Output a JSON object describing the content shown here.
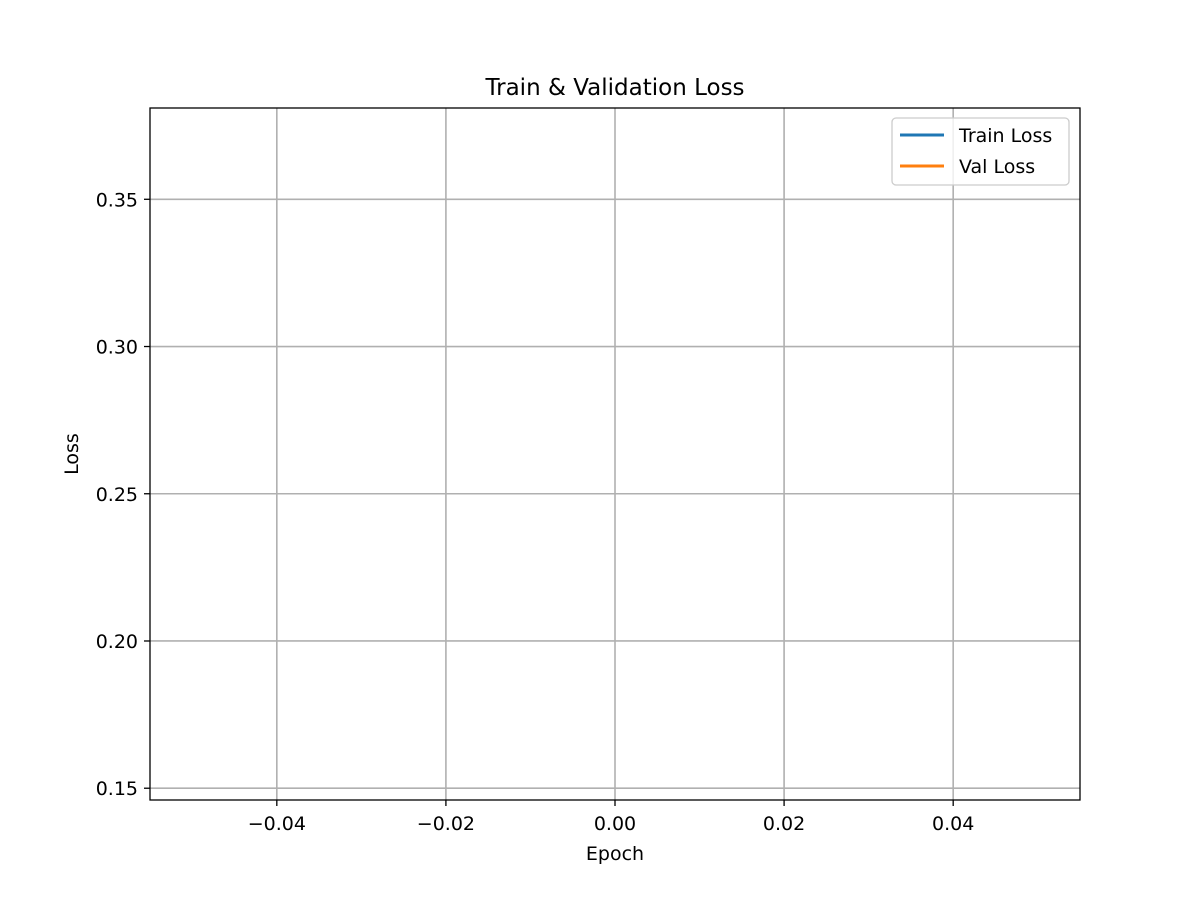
{
  "chart_data": {
    "type": "line",
    "title": "Train & Validation Loss",
    "xlabel": "Epoch",
    "ylabel": "Loss",
    "xlim": [
      -0.055,
      0.055
    ],
    "ylim": [
      0.146,
      0.381
    ],
    "xticks": [
      -0.04,
      -0.02,
      0.0,
      0.02,
      0.04
    ],
    "xtick_labels": [
      "−0.04",
      "−0.02",
      "0.00",
      "0.02",
      "0.04"
    ],
    "yticks": [
      0.15,
      0.2,
      0.25,
      0.3,
      0.35
    ],
    "ytick_labels": [
      "0.15",
      "0.20",
      "0.25",
      "0.30",
      "0.35"
    ],
    "grid": true,
    "legend_position": "top-right",
    "series": [
      {
        "name": "Train Loss",
        "color": "#1f77b4",
        "x": [],
        "y": []
      },
      {
        "name": "Val Loss",
        "color": "#ff7f0e",
        "x": [],
        "y": []
      }
    ]
  }
}
